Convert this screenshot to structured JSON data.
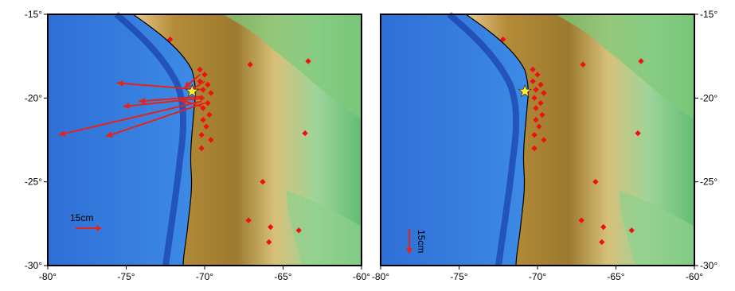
{
  "figure": {
    "panels": [
      {
        "id": "horizontal",
        "scale_bar": {
          "label": "15cm",
          "orientation": "horizontal"
        }
      },
      {
        "id": "vertical",
        "scale_bar": {
          "label": "15cm",
          "orientation": "vertical"
        }
      }
    ],
    "axes": {
      "lon_ticks": [
        {
          "value": -80,
          "label": "-80°"
        },
        {
          "value": -75,
          "label": "-75°"
        },
        {
          "value": -70,
          "label": "-70°"
        },
        {
          "value": -65,
          "label": "-65°"
        },
        {
          "value": -60,
          "label": "-60°"
        }
      ],
      "lat_ticks": [
        {
          "value": -15,
          "label": "-15°"
        },
        {
          "value": -20,
          "label": "-20°"
        },
        {
          "value": -25,
          "label": "-25°"
        },
        {
          "value": -30,
          "label": "-30°"
        }
      ],
      "lon_range": [
        -80,
        -60
      ],
      "lat_range": [
        -30,
        -15
      ]
    },
    "epicenter": {
      "lon": -70.8,
      "lat": -19.6,
      "symbol": "star",
      "color": "#ffee33"
    },
    "stations": [
      [
        -72.2,
        -16.5
      ],
      [
        -70.3,
        -18.3
      ],
      [
        -67.1,
        -18.0
      ],
      [
        -63.4,
        -17.8
      ],
      [
        -70.0,
        -18.6
      ],
      [
        -70.3,
        -19.0
      ],
      [
        -69.8,
        -19.2
      ],
      [
        -70.1,
        -19.5
      ],
      [
        -69.6,
        -19.7
      ],
      [
        -70.2,
        -20.0
      ],
      [
        -69.8,
        -20.3
      ],
      [
        -70.1,
        -20.6
      ],
      [
        -69.7,
        -21.0
      ],
      [
        -70.1,
        -21.3
      ],
      [
        -69.9,
        -21.7
      ],
      [
        -70.2,
        -22.2
      ],
      [
        -69.6,
        -22.5
      ],
      [
        -70.2,
        -23.0
      ],
      [
        -63.6,
        -22.1
      ],
      [
        -66.3,
        -25.0
      ],
      [
        -67.2,
        -27.3
      ],
      [
        -65.8,
        -27.7
      ],
      [
        -64.0,
        -27.9
      ],
      [
        -65.9,
        -28.6
      ]
    ],
    "horizontal_vectors": [
      [
        -70.3,
        -18.6,
        -71.3,
        -19.4
      ],
      [
        -70.0,
        -19.0,
        -71.0,
        -19.6
      ],
      [
        -70.2,
        -19.5,
        -75.6,
        -19.1
      ],
      [
        -70.1,
        -19.9,
        -74.2,
        -20.2
      ],
      [
        -70.0,
        -20.0,
        -75.2,
        -20.5
      ],
      [
        -70.2,
        -20.2,
        -79.3,
        -22.2
      ],
      [
        -70.0,
        -20.3,
        -76.3,
        -22.3
      ],
      [
        -70.2,
        -20.5,
        -71.6,
        -20.1
      ]
    ],
    "vertical_vectors": [],
    "colors": {
      "vector": "#e3241b",
      "station": "#ee1111",
      "coast": "#000000"
    }
  }
}
